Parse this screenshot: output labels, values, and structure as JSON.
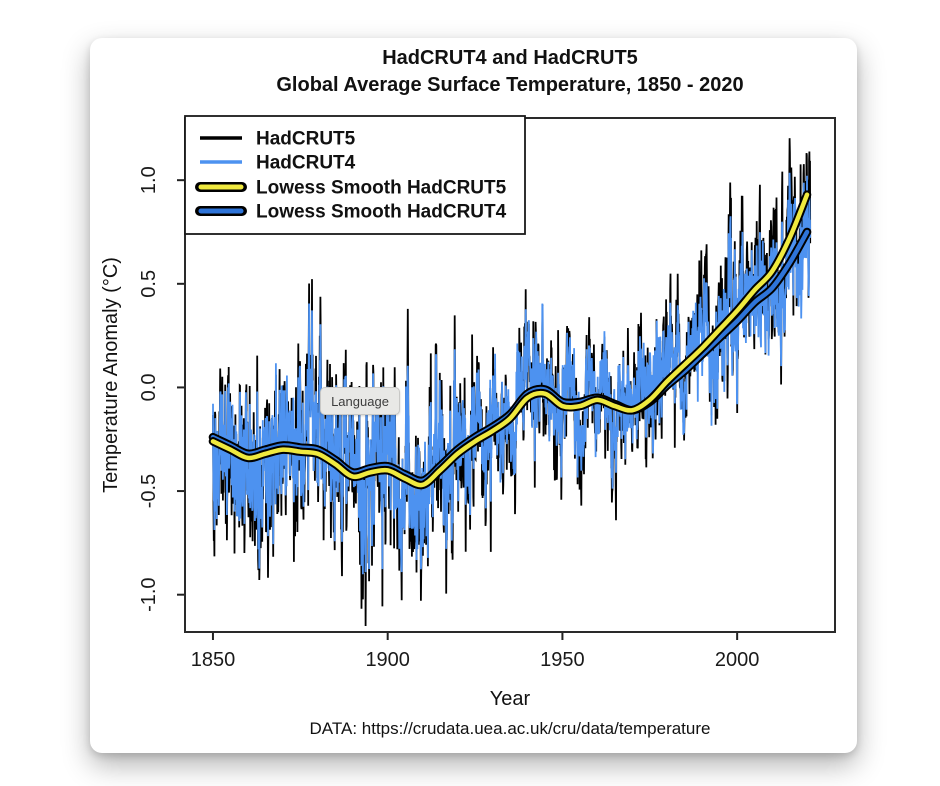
{
  "window": {
    "background": "#ffffff"
  },
  "tooltip": {
    "label": "Language"
  },
  "chart_data": {
    "type": "line",
    "title_line1": "HadCRUT4 and HadCRUT5",
    "title_line2": "Global Average Surface Temperature, 1850 - 2020",
    "xlabel": "Year",
    "ylabel": "Temperature Anomaly (°C)",
    "source_note": "DATA: https://crudata.uea.ac.uk/cru/data/temperature",
    "xlim": [
      1842,
      2028
    ],
    "ylim": [
      -1.18,
      1.3
    ],
    "xticks": [
      "1850",
      "1900",
      "1950",
      "2000"
    ],
    "yticks": [
      "-1.0",
      "-0.5",
      "0.0",
      "0.5",
      "1.0"
    ],
    "grid": false,
    "legend_position": "top-left",
    "monthly_scatter_sd": 0.12,
    "colors": {
      "hadcrut5": "#000000",
      "hadcrut4": "#4D92F0",
      "lowess_hadcrut5": "#EFE93F",
      "lowess_hadcrut4": "#2E74D9",
      "lowess_outline": "#000000",
      "axis": "#222222"
    },
    "legend": {
      "items": [
        {
          "label": "HadCRUT5",
          "color": "#000000",
          "style": "thin-line"
        },
        {
          "label": "HadCRUT4",
          "color": "#4D92F0",
          "style": "thin-line"
        },
        {
          "label": "Lowess Smooth HadCRUT5",
          "color": "#EFE93F",
          "style": "thick-outlined-line"
        },
        {
          "label": "Lowess Smooth HadCRUT4",
          "color": "#2E74D9",
          "style": "thick-outlined-line"
        }
      ]
    },
    "series": {
      "start_year": 1850,
      "end_year": 2020,
      "hadcrut5_annual": [
        -0.3,
        -0.25,
        -0.28,
        -0.28,
        -0.27,
        -0.28,
        -0.35,
        -0.45,
        -0.42,
        -0.3,
        -0.35,
        -0.4,
        -0.5,
        -0.3,
        -0.45,
        -0.3,
        -0.28,
        -0.3,
        -0.25,
        -0.3,
        -0.28,
        -0.33,
        -0.25,
        -0.3,
        -0.35,
        -0.38,
        -0.35,
        -0.1,
        0.0,
        -0.3,
        -0.3,
        -0.25,
        -0.27,
        -0.33,
        -0.4,
        -0.4,
        -0.35,
        -0.4,
        -0.3,
        -0.2,
        -0.45,
        -0.4,
        -0.52,
        -0.52,
        -0.45,
        -0.42,
        -0.25,
        -0.2,
        -0.42,
        -0.3,
        -0.25,
        -0.3,
        -0.42,
        -0.5,
        -0.55,
        -0.42,
        -0.35,
        -0.5,
        -0.55,
        -0.55,
        -0.55,
        -0.55,
        -0.48,
        -0.45,
        -0.25,
        -0.2,
        -0.42,
        -0.52,
        -0.4,
        -0.32,
        -0.3,
        -0.25,
        -0.35,
        -0.3,
        -0.35,
        -0.25,
        -0.15,
        -0.25,
        -0.25,
        -0.4,
        -0.2,
        -0.15,
        -0.2,
        -0.3,
        -0.2,
        -0.25,
        -0.2,
        -0.05,
        -0.08,
        -0.05,
        0.05,
        0.1,
        0.0,
        0.02,
        0.15,
        0.05,
        -0.1,
        -0.1,
        -0.12,
        -0.15,
        -0.2,
        -0.05,
        0.0,
        0.05,
        -0.15,
        -0.2,
        -0.25,
        0.0,
        0.02,
        -0.03,
        -0.05,
        0.0,
        0.0,
        0.0,
        -0.25,
        -0.15,
        -0.1,
        -0.05,
        -0.1,
        0.0,
        -0.05,
        -0.15,
        -0.05,
        0.1,
        -0.15,
        -0.05,
        -0.15,
        0.1,
        0.02,
        0.1,
        0.2,
        0.25,
        0.05,
        0.25,
        0.08,
        0.05,
        0.12,
        0.25,
        0.28,
        0.2,
        0.35,
        0.3,
        0.12,
        0.15,
        0.22,
        0.35,
        0.25,
        0.4,
        0.55,
        0.3,
        0.3,
        0.45,
        0.5,
        0.5,
        0.45,
        0.55,
        0.5,
        0.55,
        0.42,
        0.55,
        0.6,
        0.45,
        0.5,
        0.55,
        0.62,
        0.78,
        0.88,
        0.75,
        0.7,
        0.87,
        0.92
      ],
      "hadcrut4_annual": [
        -0.28,
        -0.23,
        -0.26,
        -0.26,
        -0.25,
        -0.26,
        -0.33,
        -0.43,
        -0.4,
        -0.28,
        -0.33,
        -0.38,
        -0.48,
        -0.28,
        -0.43,
        -0.28,
        -0.26,
        -0.28,
        -0.23,
        -0.28,
        -0.26,
        -0.31,
        -0.23,
        -0.28,
        -0.33,
        -0.36,
        -0.33,
        -0.08,
        0.02,
        -0.28,
        -0.28,
        -0.23,
        -0.25,
        -0.31,
        -0.38,
        -0.38,
        -0.33,
        -0.38,
        -0.28,
        -0.18,
        -0.43,
        -0.38,
        -0.5,
        -0.5,
        -0.43,
        -0.4,
        -0.23,
        -0.18,
        -0.4,
        -0.28,
        -0.23,
        -0.28,
        -0.4,
        -0.48,
        -0.53,
        -0.4,
        -0.33,
        -0.48,
        -0.53,
        -0.53,
        -0.53,
        -0.53,
        -0.46,
        -0.43,
        -0.23,
        -0.18,
        -0.4,
        -0.5,
        -0.38,
        -0.3,
        -0.28,
        -0.23,
        -0.33,
        -0.28,
        -0.33,
        -0.23,
        -0.13,
        -0.23,
        -0.23,
        -0.38,
        -0.18,
        -0.13,
        -0.18,
        -0.28,
        -0.18,
        -0.23,
        -0.18,
        -0.03,
        -0.06,
        -0.03,
        0.07,
        0.12,
        0.02,
        0.04,
        0.17,
        0.07,
        -0.08,
        -0.08,
        -0.1,
        -0.13,
        -0.18,
        -0.03,
        0.02,
        0.07,
        -0.13,
        -0.18,
        -0.23,
        0.02,
        0.04,
        -0.01,
        -0.03,
        0.02,
        0.02,
        0.02,
        -0.23,
        -0.13,
        -0.08,
        -0.03,
        -0.08,
        0.02,
        -0.03,
        -0.13,
        -0.03,
        0.12,
        -0.13,
        -0.03,
        -0.13,
        0.12,
        0.04,
        0.1,
        0.18,
        0.22,
        0.04,
        0.22,
        0.06,
        0.04,
        0.1,
        0.22,
        0.24,
        0.16,
        0.3,
        0.26,
        0.08,
        0.12,
        0.18,
        0.3,
        0.2,
        0.36,
        0.5,
        0.26,
        0.26,
        0.38,
        0.44,
        0.44,
        0.4,
        0.48,
        0.43,
        0.47,
        0.36,
        0.47,
        0.52,
        0.38,
        0.43,
        0.47,
        0.54,
        0.67,
        0.77,
        0.64,
        0.58,
        0.72,
        0.78
      ],
      "lowess_step_years": 5,
      "lowess_hadcrut5": [
        -0.26,
        -0.3,
        -0.34,
        -0.32,
        -0.3,
        -0.31,
        -0.32,
        -0.37,
        -0.43,
        -0.41,
        -0.4,
        -0.44,
        -0.47,
        -0.4,
        -0.32,
        -0.26,
        -0.21,
        -0.15,
        -0.05,
        -0.03,
        -0.09,
        -0.09,
        -0.06,
        -0.09,
        -0.11,
        -0.06,
        0.03,
        0.11,
        0.19,
        0.28,
        0.37,
        0.47,
        0.56,
        0.72,
        0.93
      ],
      "lowess_hadcrut4": [
        -0.24,
        -0.28,
        -0.32,
        -0.3,
        -0.28,
        -0.29,
        -0.3,
        -0.35,
        -0.41,
        -0.39,
        -0.38,
        -0.42,
        -0.45,
        -0.38,
        -0.3,
        -0.24,
        -0.19,
        -0.13,
        -0.03,
        -0.01,
        -0.07,
        -0.07,
        -0.05,
        -0.08,
        -0.11,
        -0.07,
        0.01,
        0.08,
        0.16,
        0.24,
        0.32,
        0.41,
        0.48,
        0.6,
        0.75
      ]
    }
  }
}
